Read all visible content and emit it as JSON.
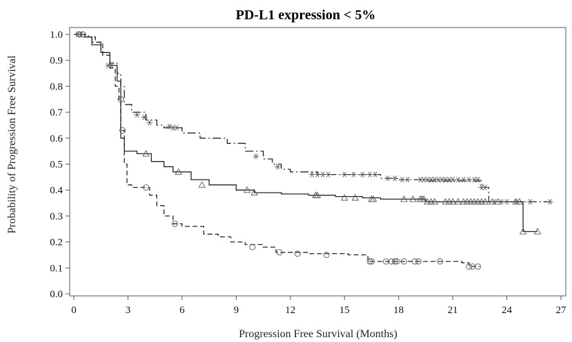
{
  "chart_data": {
    "type": "line",
    "title": "PD-L1 expression < 5%",
    "xlabel": "Progression Free Survival (Months)",
    "ylabel": "Probability of Progression Free Survival",
    "xlim": [
      0,
      27
    ],
    "ylim": [
      0,
      1.0
    ],
    "xticks": [
      "0",
      "3",
      "6",
      "9",
      "12",
      "15",
      "18",
      "21",
      "24",
      "27"
    ],
    "yticks": [
      "0.0",
      "0.1",
      "0.2",
      "0.3",
      "0.4",
      "0.5",
      "0.6",
      "0.7",
      "0.8",
      "0.9",
      "1.0"
    ],
    "grid": false,
    "series": [
      {
        "style": "solid",
        "marker": "triangle",
        "color": "#222222",
        "steps": [
          [
            0,
            1.0
          ],
          [
            0.6,
            0.99
          ],
          [
            1.0,
            0.96
          ],
          [
            1.5,
            0.93
          ],
          [
            2.0,
            0.88
          ],
          [
            2.4,
            0.82
          ],
          [
            2.6,
            0.6
          ],
          [
            2.8,
            0.55
          ],
          [
            3.5,
            0.54
          ],
          [
            4.3,
            0.51
          ],
          [
            5.0,
            0.49
          ],
          [
            5.5,
            0.47
          ],
          [
            6.5,
            0.44
          ],
          [
            7.5,
            0.42
          ],
          [
            9.0,
            0.4
          ],
          [
            10.0,
            0.39
          ],
          [
            11.5,
            0.385
          ],
          [
            13.0,
            0.38
          ],
          [
            14.5,
            0.375
          ],
          [
            16.0,
            0.37
          ],
          [
            17.0,
            0.365
          ],
          [
            19.5,
            0.355
          ],
          [
            24.8,
            0.355
          ],
          [
            24.9,
            0.24
          ],
          [
            25.7,
            0.24
          ]
        ],
        "censored": [
          [
            4.0,
            0.54
          ],
          [
            5.8,
            0.47
          ],
          [
            7.1,
            0.42
          ],
          [
            9.6,
            0.4
          ],
          [
            10.0,
            0.39
          ],
          [
            13.4,
            0.38
          ],
          [
            13.5,
            0.38
          ],
          [
            15.0,
            0.37
          ],
          [
            15.6,
            0.37
          ],
          [
            16.5,
            0.365
          ],
          [
            16.6,
            0.365
          ],
          [
            18.3,
            0.365
          ],
          [
            18.8,
            0.365
          ],
          [
            19.2,
            0.365
          ],
          [
            19.3,
            0.365
          ],
          [
            19.4,
            0.365
          ],
          [
            19.6,
            0.355
          ],
          [
            19.8,
            0.355
          ],
          [
            20.0,
            0.355
          ],
          [
            20.6,
            0.355
          ],
          [
            20.8,
            0.355
          ],
          [
            21.0,
            0.355
          ],
          [
            21.3,
            0.355
          ],
          [
            21.6,
            0.355
          ],
          [
            21.8,
            0.355
          ],
          [
            22.0,
            0.355
          ],
          [
            22.2,
            0.355
          ],
          [
            22.4,
            0.355
          ],
          [
            22.6,
            0.355
          ],
          [
            22.8,
            0.355
          ],
          [
            23.2,
            0.355
          ],
          [
            23.5,
            0.355
          ],
          [
            24.5,
            0.355
          ],
          [
            24.7,
            0.355
          ],
          [
            24.9,
            0.24
          ],
          [
            25.7,
            0.24
          ]
        ]
      },
      {
        "style": "dashed",
        "marker": "circle",
        "color": "#222222",
        "steps": [
          [
            0,
            1.0
          ],
          [
            0.8,
            0.99
          ],
          [
            1.2,
            0.97
          ],
          [
            1.6,
            0.92
          ],
          [
            2.0,
            0.87
          ],
          [
            2.3,
            0.8
          ],
          [
            2.5,
            0.75
          ],
          [
            2.6,
            0.63
          ],
          [
            2.8,
            0.5
          ],
          [
            2.95,
            0.42
          ],
          [
            3.2,
            0.41
          ],
          [
            4.2,
            0.38
          ],
          [
            4.6,
            0.34
          ],
          [
            5.0,
            0.3
          ],
          [
            5.5,
            0.27
          ],
          [
            6.0,
            0.26
          ],
          [
            7.2,
            0.23
          ],
          [
            8.0,
            0.22
          ],
          [
            8.7,
            0.2
          ],
          [
            9.5,
            0.19
          ],
          [
            10.5,
            0.18
          ],
          [
            11.2,
            0.16
          ],
          [
            13.0,
            0.155
          ],
          [
            15.2,
            0.15
          ],
          [
            16.3,
            0.125
          ],
          [
            21.5,
            0.12
          ],
          [
            21.9,
            0.105
          ],
          [
            22.5,
            0.105
          ]
        ],
        "censored": [
          [
            0.3,
            1.0
          ],
          [
            0.5,
            1.0
          ],
          [
            2.6,
            0.75
          ],
          [
            2.7,
            0.63
          ],
          [
            4.0,
            0.41
          ],
          [
            5.6,
            0.27
          ],
          [
            9.9,
            0.18
          ],
          [
            11.4,
            0.16
          ],
          [
            12.4,
            0.155
          ],
          [
            14.0,
            0.15
          ],
          [
            16.4,
            0.125
          ],
          [
            16.5,
            0.125
          ],
          [
            17.3,
            0.125
          ],
          [
            17.6,
            0.125
          ],
          [
            17.8,
            0.125
          ],
          [
            17.9,
            0.125
          ],
          [
            18.3,
            0.125
          ],
          [
            18.9,
            0.125
          ],
          [
            19.1,
            0.125
          ],
          [
            20.3,
            0.125
          ],
          [
            21.9,
            0.105
          ],
          [
            22.1,
            0.105
          ],
          [
            22.4,
            0.105
          ]
        ]
      },
      {
        "style": "dashdot",
        "marker": "star",
        "color": "#222222",
        "steps": [
          [
            0,
            1.0
          ],
          [
            0.6,
            0.99
          ],
          [
            1.0,
            0.97
          ],
          [
            1.5,
            0.93
          ],
          [
            2.0,
            0.89
          ],
          [
            2.4,
            0.85
          ],
          [
            2.6,
            0.8
          ],
          [
            2.8,
            0.73
          ],
          [
            3.2,
            0.7
          ],
          [
            4.0,
            0.67
          ],
          [
            4.6,
            0.65
          ],
          [
            5.0,
            0.64
          ],
          [
            6.0,
            0.62
          ],
          [
            7.0,
            0.6
          ],
          [
            8.5,
            0.58
          ],
          [
            9.5,
            0.55
          ],
          [
            10.5,
            0.52
          ],
          [
            11.0,
            0.5
          ],
          [
            11.5,
            0.48
          ],
          [
            12.0,
            0.47
          ],
          [
            13.5,
            0.46
          ],
          [
            16.5,
            0.46
          ],
          [
            17.0,
            0.445
          ],
          [
            18.0,
            0.44
          ],
          [
            19.5,
            0.435
          ],
          [
            22.5,
            0.435
          ],
          [
            22.6,
            0.41
          ],
          [
            23.0,
            0.355
          ],
          [
            26.4,
            0.355
          ]
        ],
        "censored": [
          [
            0.2,
            1.0
          ],
          [
            0.4,
            1.0
          ],
          [
            1.9,
            0.88
          ],
          [
            2.1,
            0.88
          ],
          [
            3.5,
            0.69
          ],
          [
            3.9,
            0.68
          ],
          [
            4.2,
            0.66
          ],
          [
            5.3,
            0.645
          ],
          [
            5.5,
            0.64
          ],
          [
            5.7,
            0.64
          ],
          [
            10.1,
            0.53
          ],
          [
            11.3,
            0.49
          ],
          [
            13.2,
            0.46
          ],
          [
            13.5,
            0.46
          ],
          [
            13.8,
            0.46
          ],
          [
            14.1,
            0.46
          ],
          [
            15.0,
            0.46
          ],
          [
            15.5,
            0.46
          ],
          [
            16.0,
            0.46
          ],
          [
            16.4,
            0.46
          ],
          [
            16.7,
            0.46
          ],
          [
            17.4,
            0.445
          ],
          [
            17.8,
            0.445
          ],
          [
            18.2,
            0.44
          ],
          [
            18.5,
            0.44
          ],
          [
            19.2,
            0.44
          ],
          [
            19.4,
            0.44
          ],
          [
            19.6,
            0.44
          ],
          [
            19.8,
            0.44
          ],
          [
            20.0,
            0.44
          ],
          [
            20.2,
            0.44
          ],
          [
            20.4,
            0.44
          ],
          [
            20.6,
            0.44
          ],
          [
            20.8,
            0.44
          ],
          [
            21.0,
            0.44
          ],
          [
            21.3,
            0.44
          ],
          [
            21.6,
            0.44
          ],
          [
            21.9,
            0.44
          ],
          [
            22.2,
            0.44
          ],
          [
            22.4,
            0.44
          ],
          [
            22.6,
            0.41
          ],
          [
            22.8,
            0.41
          ],
          [
            23.3,
            0.355
          ],
          [
            23.7,
            0.355
          ],
          [
            24.0,
            0.355
          ],
          [
            24.5,
            0.355
          ],
          [
            25.3,
            0.355
          ],
          [
            26.4,
            0.355
          ]
        ]
      }
    ]
  }
}
